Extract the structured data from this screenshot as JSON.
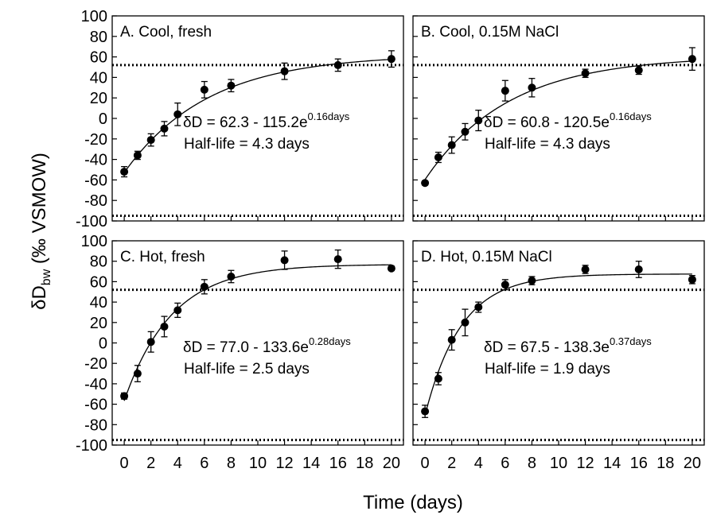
{
  "y_axis_title": {
    "delta": "δD",
    "sub": "bw",
    "rest": " (‰ VSMOW)"
  },
  "x_axis_title": "Time (days)",
  "chart_data": {
    "type": "scatter",
    "x_ticks": [
      "0",
      "2",
      "4",
      "6",
      "8",
      "10",
      "12",
      "14",
      "16",
      "18",
      "20"
    ],
    "y_ticks": [
      "100",
      "80",
      "60",
      "40",
      "20",
      "0",
      "-20",
      "-40",
      "-60",
      "-80",
      "-100"
    ],
    "xlim": [
      -0.9,
      20.9
    ],
    "ylim": [
      -100,
      100
    ],
    "reference_lines_y": [
      52,
      -95
    ],
    "panels": [
      {
        "label": "A. Cool, fresh",
        "equation": {
          "main": "δD = 62.3 - 115.2e",
          "sup": "0.16days"
        },
        "half_life": "Half-life = 4.3 days",
        "fit": {
          "a": 62.3,
          "b": 115.2,
          "k": 0.16,
          "x_end": 20
        },
        "points": [
          {
            "x": 0,
            "y": -52,
            "err": 5
          },
          {
            "x": 1,
            "y": -36,
            "err": 4
          },
          {
            "x": 2,
            "y": -21,
            "err": 6
          },
          {
            "x": 3,
            "y": -10,
            "err": 7
          },
          {
            "x": 4,
            "y": 4,
            "err": 11
          },
          {
            "x": 6,
            "y": 28,
            "err": 8
          },
          {
            "x": 8,
            "y": 32,
            "err": 6
          },
          {
            "x": 12,
            "y": 46,
            "err": 8
          },
          {
            "x": 16,
            "y": 52,
            "err": 6
          },
          {
            "x": 20,
            "y": 58,
            "err": 8
          }
        ]
      },
      {
        "label": "B. Cool, 0.15M NaCl",
        "equation": {
          "main": "δD = 60.8 - 120.5e",
          "sup": "0.16days"
        },
        "half_life": "Half-life = 4.3 days",
        "fit": {
          "a": 60.8,
          "b": 120.5,
          "k": 0.16,
          "x_end": 20
        },
        "points": [
          {
            "x": 0,
            "y": -63,
            "err": 2
          },
          {
            "x": 1,
            "y": -38,
            "err": 5
          },
          {
            "x": 2,
            "y": -26,
            "err": 8
          },
          {
            "x": 3,
            "y": -13,
            "err": 8
          },
          {
            "x": 4,
            "y": -2,
            "err": 10
          },
          {
            "x": 6,
            "y": 27,
            "err": 10
          },
          {
            "x": 8,
            "y": 30,
            "err": 9
          },
          {
            "x": 12,
            "y": 44,
            "err": 4
          },
          {
            "x": 16,
            "y": 47,
            "err": 4
          },
          {
            "x": 20,
            "y": 58,
            "err": 11
          }
        ]
      },
      {
        "label": "C. Hot, fresh",
        "equation": {
          "main": "δD = 77.0 - 133.6e",
          "sup": "0.28days"
        },
        "half_life": "Half-life = 2.5 days",
        "fit": {
          "a": 77.0,
          "b": 133.6,
          "k": 0.28,
          "x_end": 20
        },
        "points": [
          {
            "x": 0,
            "y": -52,
            "err": 3
          },
          {
            "x": 1,
            "y": -30,
            "err": 8
          },
          {
            "x": 2,
            "y": 1,
            "err": 10
          },
          {
            "x": 3,
            "y": 16,
            "err": 10
          },
          {
            "x": 4,
            "y": 32,
            "err": 7
          },
          {
            "x": 6,
            "y": 55,
            "err": 7
          },
          {
            "x": 8,
            "y": 65,
            "err": 6
          },
          {
            "x": 12,
            "y": 81,
            "err": 9
          },
          {
            "x": 16,
            "y": 82,
            "err": 9
          },
          {
            "x": 20,
            "y": 73,
            "err": 2
          }
        ]
      },
      {
        "label": "D. Hot, 0.15M NaCl",
        "equation": {
          "main": "δD = 67.5 - 138.3e",
          "sup": "0.37days"
        },
        "half_life": "Half-life = 1.9 days",
        "fit": {
          "a": 67.5,
          "b": 138.3,
          "k": 0.37,
          "x_end": 20
        },
        "points": [
          {
            "x": 0,
            "y": -67,
            "err": 6
          },
          {
            "x": 1,
            "y": -35,
            "err": 6
          },
          {
            "x": 2,
            "y": 3,
            "err": 10
          },
          {
            "x": 3,
            "y": 20,
            "err": 13
          },
          {
            "x": 4,
            "y": 35,
            "err": 5
          },
          {
            "x": 6,
            "y": 57,
            "err": 5
          },
          {
            "x": 8,
            "y": 61,
            "err": 4
          },
          {
            "x": 12,
            "y": 72,
            "err": 4
          },
          {
            "x": 16,
            "y": 72,
            "err": 8
          },
          {
            "x": 20,
            "y": 62,
            "err": 4
          }
        ]
      }
    ]
  }
}
